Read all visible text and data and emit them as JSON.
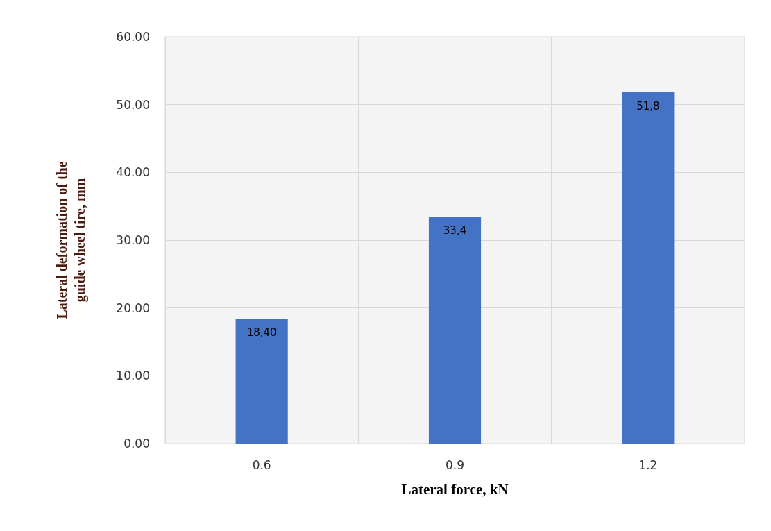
{
  "chart_data": {
    "type": "bar",
    "xlabel": "Lateral force, kN",
    "ylabel": "Lateral deformation of the\nguide wheel tire, mm",
    "categories": [
      "0.6",
      "0.9",
      "1.2"
    ],
    "values": [
      18.4,
      33.4,
      51.8
    ],
    "value_labels": [
      "18,40",
      "33,4",
      "51,8"
    ],
    "color": "#4472c4",
    "ylim": [
      0,
      60
    ],
    "yticks": [
      {
        "value": 0,
        "label": "0.00"
      },
      {
        "value": 10,
        "label": "10.00"
      },
      {
        "value": 20,
        "label": "20.00"
      },
      {
        "value": 30,
        "label": "30.00"
      },
      {
        "value": 40,
        "label": "40.00"
      },
      {
        "value": 50,
        "label": "50.00"
      },
      {
        "value": 60,
        "label": "60.00"
      }
    ],
    "grid": true
  }
}
